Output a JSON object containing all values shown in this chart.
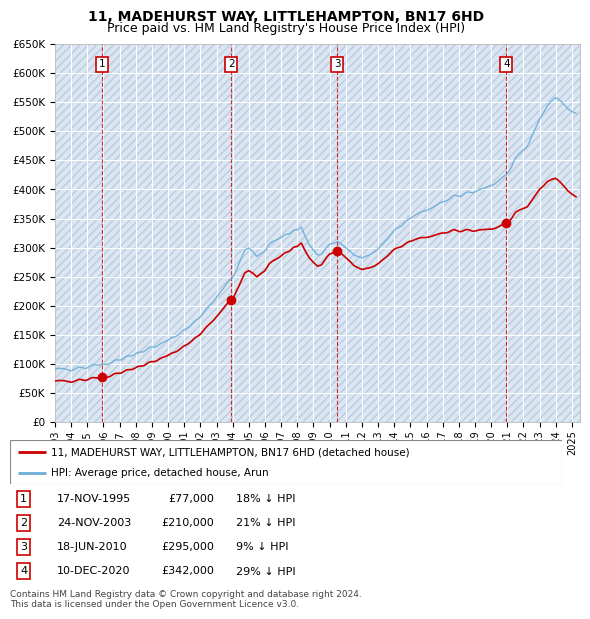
{
  "title": "11, MADEHURST WAY, LITTLEHAMPTON, BN17 6HD",
  "subtitle": "Price paid vs. HM Land Registry's House Price Index (HPI)",
  "ylim": [
    0,
    650000
  ],
  "yticks": [
    0,
    50000,
    100000,
    150000,
    200000,
    250000,
    300000,
    350000,
    400000,
    450000,
    500000,
    550000,
    600000,
    650000
  ],
  "ytick_labels": [
    "£0",
    "£50K",
    "£100K",
    "£150K",
    "£200K",
    "£250K",
    "£300K",
    "£350K",
    "£400K",
    "£450K",
    "£500K",
    "£550K",
    "£600K",
    "£650K"
  ],
  "xlim_start": 1993.0,
  "xlim_end": 2025.5,
  "background_color": "#dce6f1",
  "hatch_color": "#b8cce4",
  "grid_color": "#ffffff",
  "hpi_color": "#6baed6",
  "sale_color": "#cc0000",
  "transactions": [
    {
      "num": 1,
      "year": 1995.89,
      "price": 77000,
      "label": "1",
      "date": "17-NOV-1995",
      "amount": "£77,000",
      "pct": "18% ↓ HPI"
    },
    {
      "num": 2,
      "year": 2003.9,
      "price": 210000,
      "label": "2",
      "date": "24-NOV-2003",
      "amount": "£210,000",
      "pct": "21% ↓ HPI"
    },
    {
      "num": 3,
      "year": 2010.46,
      "price": 295000,
      "label": "3",
      "date": "18-JUN-2010",
      "amount": "£295,000",
      "pct": "9% ↓ HPI"
    },
    {
      "num": 4,
      "year": 2020.94,
      "price": 342000,
      "label": "4",
      "date": "10-DEC-2020",
      "amount": "£342,000",
      "pct": "29% ↓ HPI"
    }
  ],
  "hpi_anchors": [
    [
      1993.0,
      90000
    ],
    [
      1993.5,
      91000
    ],
    [
      1994.0,
      92000
    ],
    [
      1994.5,
      93500
    ],
    [
      1995.0,
      95000
    ],
    [
      1995.5,
      97000
    ],
    [
      1996.0,
      100000
    ],
    [
      1996.5,
      103000
    ],
    [
      1997.0,
      108000
    ],
    [
      1997.5,
      112000
    ],
    [
      1998.0,
      118000
    ],
    [
      1998.5,
      123000
    ],
    [
      1999.0,
      129000
    ],
    [
      1999.5,
      135000
    ],
    [
      2000.0,
      142000
    ],
    [
      2000.5,
      150000
    ],
    [
      2001.0,
      158000
    ],
    [
      2001.5,
      168000
    ],
    [
      2002.0,
      182000
    ],
    [
      2002.5,
      198000
    ],
    [
      2003.0,
      215000
    ],
    [
      2003.5,
      232000
    ],
    [
      2004.0,
      248000
    ],
    [
      2004.25,
      265000
    ],
    [
      2004.5,
      280000
    ],
    [
      2004.75,
      295000
    ],
    [
      2005.0,
      300000
    ],
    [
      2005.25,
      295000
    ],
    [
      2005.5,
      285000
    ],
    [
      2005.75,
      290000
    ],
    [
      2006.0,
      295000
    ],
    [
      2006.25,
      305000
    ],
    [
      2006.5,
      310000
    ],
    [
      2006.75,
      315000
    ],
    [
      2007.0,
      318000
    ],
    [
      2007.25,
      322000
    ],
    [
      2007.5,
      325000
    ],
    [
      2007.75,
      330000
    ],
    [
      2008.0,
      328000
    ],
    [
      2008.25,
      335000
    ],
    [
      2008.5,
      320000
    ],
    [
      2008.75,
      305000
    ],
    [
      2009.0,
      295000
    ],
    [
      2009.25,
      288000
    ],
    [
      2009.5,
      290000
    ],
    [
      2009.75,
      298000
    ],
    [
      2010.0,
      305000
    ],
    [
      2010.25,
      308000
    ],
    [
      2010.5,
      312000
    ],
    [
      2010.75,
      305000
    ],
    [
      2011.0,
      300000
    ],
    [
      2011.25,
      295000
    ],
    [
      2011.5,
      288000
    ],
    [
      2011.75,
      285000
    ],
    [
      2012.0,
      282000
    ],
    [
      2012.25,
      285000
    ],
    [
      2012.5,
      288000
    ],
    [
      2012.75,
      292000
    ],
    [
      2013.0,
      298000
    ],
    [
      2013.25,
      305000
    ],
    [
      2013.5,
      312000
    ],
    [
      2013.75,
      320000
    ],
    [
      2014.0,
      328000
    ],
    [
      2014.25,
      335000
    ],
    [
      2014.5,
      340000
    ],
    [
      2014.75,
      345000
    ],
    [
      2015.0,
      350000
    ],
    [
      2015.25,
      355000
    ],
    [
      2015.5,
      358000
    ],
    [
      2015.75,
      362000
    ],
    [
      2016.0,
      365000
    ],
    [
      2016.25,
      368000
    ],
    [
      2016.5,
      372000
    ],
    [
      2016.75,
      375000
    ],
    [
      2017.0,
      378000
    ],
    [
      2017.25,
      382000
    ],
    [
      2017.5,
      385000
    ],
    [
      2017.75,
      388000
    ],
    [
      2018.0,
      390000
    ],
    [
      2018.25,
      392000
    ],
    [
      2018.5,
      394000
    ],
    [
      2018.75,
      396000
    ],
    [
      2019.0,
      398000
    ],
    [
      2019.25,
      400000
    ],
    [
      2019.5,
      402000
    ],
    [
      2019.75,
      404000
    ],
    [
      2020.0,
      406000
    ],
    [
      2020.25,
      410000
    ],
    [
      2020.5,
      415000
    ],
    [
      2020.75,
      422000
    ],
    [
      2021.0,
      430000
    ],
    [
      2021.25,
      440000
    ],
    [
      2021.5,
      455000
    ],
    [
      2021.75,
      462000
    ],
    [
      2022.0,
      468000
    ],
    [
      2022.25,
      475000
    ],
    [
      2022.5,
      490000
    ],
    [
      2022.75,
      505000
    ],
    [
      2023.0,
      520000
    ],
    [
      2023.25,
      530000
    ],
    [
      2023.5,
      545000
    ],
    [
      2023.75,
      555000
    ],
    [
      2024.0,
      560000
    ],
    [
      2024.25,
      555000
    ],
    [
      2024.5,
      548000
    ],
    [
      2024.75,
      540000
    ],
    [
      2025.0,
      535000
    ],
    [
      2025.25,
      530000
    ]
  ],
  "sale_discounts": [
    0.18,
    0.21,
    0.09,
    0.29
  ],
  "legend_house_label": "11, MADEHURST WAY, LITTLEHAMPTON, BN17 6HD (detached house)",
  "legend_hpi_label": "HPI: Average price, detached house, Arun",
  "footer": "Contains HM Land Registry data © Crown copyright and database right 2024.\nThis data is licensed under the Open Government Licence v3.0.",
  "title_fontsize": 10,
  "subtitle_fontsize": 9
}
